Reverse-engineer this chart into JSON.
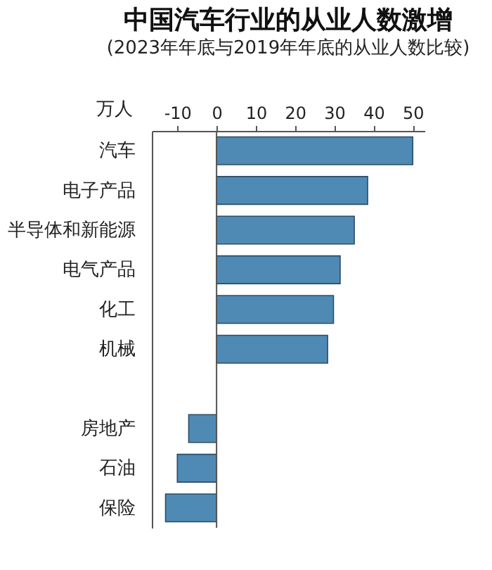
{
  "chart_data": {
    "type": "bar",
    "orientation": "horizontal",
    "title": "中国汽车行业的从业人数激增",
    "subtitle": "(2023年年底与2019年年底的从业人数比较)",
    "xlabel": "万人",
    "categories": [
      "汽车",
      "电子产品",
      "半导体和新能源",
      "电气产品",
      "化工",
      "机械",
      null,
      "房地产",
      "石油",
      "保险"
    ],
    "values": [
      50,
      38.5,
      35.1,
      31.5,
      29.8,
      28.3,
      null,
      -7.1,
      -10,
      -13
    ],
    "color": "#4f8ab4",
    "xlim": [
      -16.5,
      53
    ],
    "xticks": [
      -10,
      0,
      10,
      20,
      30,
      40,
      50
    ],
    "ref_lines": [
      {
        "axis": "x",
        "value": 0,
        "color": "#555555"
      }
    ],
    "grid": false
  }
}
